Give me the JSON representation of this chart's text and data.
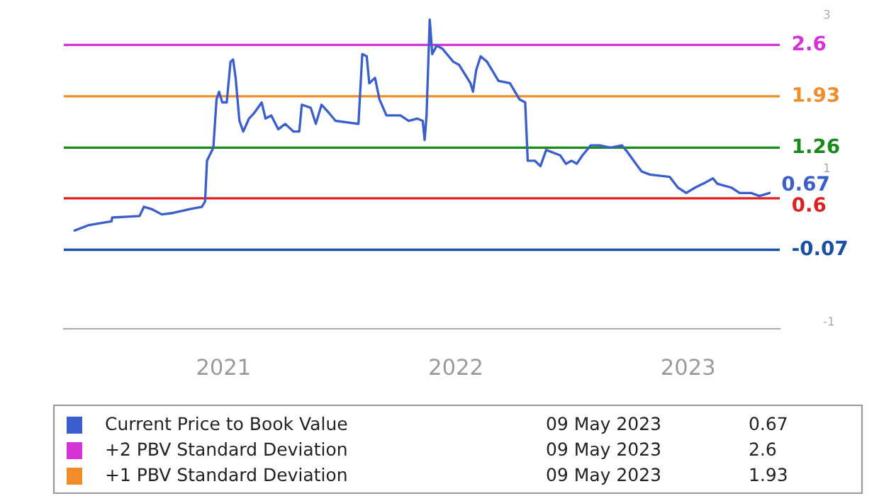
{
  "chart_data": {
    "type": "line",
    "series": [
      {
        "name": "Current Price to Book Value",
        "color": "#3a5fcd",
        "x": [
          "2020-05-12",
          "2020-06-03",
          "2020-06-17",
          "2020-07-09",
          "2020-07-10",
          "2020-08-22",
          "2020-08-29",
          "2020-09-10",
          "2020-09-26",
          "2020-10-14",
          "2020-11-09",
          "2020-11-28",
          "2020-12-03",
          "2020-12-06",
          "2020-12-16",
          "2020-12-21",
          "2020-12-25",
          "2020-12-30",
          "2021-01-06",
          "2021-01-12",
          "2021-01-16",
          "2021-01-20",
          "2021-01-26",
          "2021-02-01",
          "2021-02-10",
          "2021-02-18",
          "2021-03-02",
          "2021-03-08",
          "2021-03-17",
          "2021-03-28",
          "2021-04-08",
          "2021-04-21",
          "2021-04-30",
          "2021-05-04",
          "2021-05-18",
          "2021-05-26",
          "2021-06-04",
          "2021-06-16",
          "2021-06-26",
          "2021-08-01",
          "2021-08-07",
          "2021-08-14",
          "2021-08-18",
          "2021-08-27",
          "2021-09-03",
          "2021-09-14",
          "2021-10-06",
          "2021-10-19",
          "2021-11-01",
          "2021-11-10",
          "2021-11-13",
          "2021-11-16",
          "2021-11-21",
          "2021-11-25",
          "2021-12-02",
          "2021-12-11",
          "2021-12-28",
          "2022-01-06",
          "2022-01-24",
          "2022-01-28",
          "2022-02-02",
          "2022-02-09",
          "2022-02-19",
          "2022-03-09",
          "2022-03-27",
          "2022-04-11",
          "2022-04-20",
          "2022-04-24",
          "2022-05-05",
          "2022-05-14",
          "2022-05-23",
          "2022-06-14",
          "2022-06-23",
          "2022-07-02",
          "2022-07-10",
          "2022-07-19",
          "2022-08-01",
          "2022-08-15",
          "2022-09-01",
          "2022-09-19",
          "2022-09-28",
          "2022-10-11",
          "2022-10-20",
          "2022-11-02",
          "2022-12-03",
          "2022-12-16",
          "2022-12-29",
          "2023-01-12",
          "2023-01-29",
          "2023-02-09",
          "2023-02-16",
          "2023-03-10",
          "2023-03-23",
          "2023-04-10",
          "2023-04-23",
          "2023-05-09"
        ],
        "values": [
          0.18,
          0.25,
          0.27,
          0.3,
          0.35,
          0.37,
          0.49,
          0.46,
          0.39,
          0.41,
          0.46,
          0.49,
          0.56,
          1.09,
          1.26,
          1.89,
          1.99,
          1.85,
          1.85,
          2.38,
          2.41,
          2.17,
          1.61,
          1.47,
          1.64,
          1.71,
          1.85,
          1.64,
          1.68,
          1.5,
          1.57,
          1.47,
          1.47,
          1.82,
          1.78,
          1.57,
          1.82,
          1.71,
          1.61,
          1.57,
          2.48,
          2.45,
          2.1,
          2.17,
          1.89,
          1.68,
          1.68,
          1.61,
          1.64,
          1.61,
          1.36,
          1.68,
          2.93,
          2.48,
          2.59,
          2.55,
          2.38,
          2.34,
          2.1,
          1.99,
          2.27,
          2.45,
          2.38,
          2.13,
          2.1,
          1.89,
          1.85,
          1.09,
          1.09,
          1.02,
          1.23,
          1.16,
          1.05,
          1.09,
          1.05,
          1.16,
          1.29,
          1.29,
          1.26,
          1.29,
          1.2,
          1.05,
          0.95,
          0.91,
          0.88,
          0.74,
          0.67,
          0.74,
          0.81,
          0.86,
          0.79,
          0.74,
          0.67,
          0.67,
          0.63,
          0.67
        ]
      }
    ],
    "ref_lines": [
      {
        "axis": "y",
        "value": 2.6,
        "label": "2.6",
        "color": "#d633d6"
      },
      {
        "axis": "y",
        "value": 1.93,
        "label": "1.93",
        "color": "#f08c2a"
      },
      {
        "axis": "y",
        "value": 1.26,
        "label": "1.26",
        "color": "#1a8a1a"
      },
      {
        "axis": "y",
        "value": 0.6,
        "label": "0.6",
        "color": "#e02020"
      },
      {
        "axis": "y",
        "value": -0.07,
        "label": "-0.07",
        "color": "#1a4fa8"
      }
    ],
    "annotations": [
      {
        "text": "0.67",
        "x": "2023-05-09",
        "y": 0.67
      },
      "09 May 2023",
      "0.67",
      "+2 PBV Standard Deviation",
      "09 May 2023",
      "2.6",
      "+1 PBV Standard Deviation",
      "09 May 2023",
      "1.93"
    ],
    "xlim": [
      "2020-04-25",
      "2023-05-25"
    ],
    "xticks": [
      {
        "value": "2021-01-01",
        "label": "2021"
      },
      {
        "value": "2022-01-01",
        "label": "2022"
      },
      {
        "value": "2023-01-01",
        "label": "2023"
      }
    ],
    "ylim": [
      -1.1,
      3.0
    ],
    "yticks": [
      -1,
      1,
      3
    ],
    "grid": false,
    "legend": "bottom"
  }
}
